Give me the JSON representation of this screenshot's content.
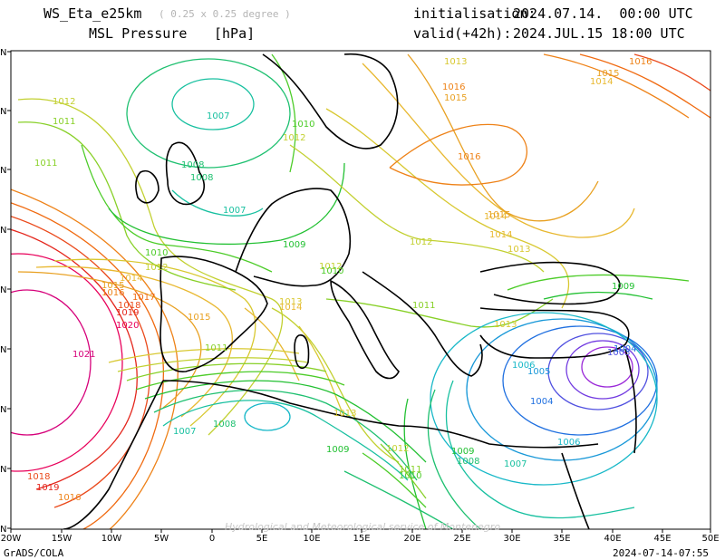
{
  "header": {
    "model": "WS_Eta_e25km",
    "resolution": "( 0.25 x 0.25 degree )",
    "field": "MSL Pressure",
    "unit": "[hPa]",
    "init_label": "initialisation:",
    "init_value": "2024.07.14.  00:00 UTC",
    "valid_label": "valid(+42h):",
    "valid_value": "2024.JUL.15 18:00 UTC"
  },
  "axes": {
    "lon_ticks": [
      "20W",
      "15W",
      "10W",
      "5W",
      "0",
      "5E",
      "10E",
      "15E",
      "20E",
      "25E",
      "30E",
      "35E",
      "40E",
      "45E",
      "50E"
    ],
    "lat_ticks": [
      "N",
      "N",
      "N",
      "N",
      "N",
      "N",
      "N",
      "N",
      "N"
    ]
  },
  "watermark": "Hydrological and Meteorological service of Montenegro",
  "footer": {
    "left": "GrADS/COLA",
    "right": "2024-07-14-07:55"
  },
  "colors": {
    "hp1021": "#d6007a",
    "hp1020": "#e8005a",
    "hp1019": "#e4261c",
    "hp1018": "#ea4a1c",
    "hp1017": "#f06a10",
    "hp1016": "#ee8218",
    "hp1015": "#e8a020",
    "hp1014": "#e8b830",
    "hp1013": "#d8c830",
    "hp1012": "#c2d030",
    "hp1011": "#88d028",
    "hp1010": "#4ccc28",
    "hp1009": "#22c032",
    "hp1008": "#1ec070",
    "hp1007": "#18c0a0",
    "hp1006": "#18b8c8",
    "hp1005": "#1898d8",
    "hp1004": "#2070e0",
    "hp1003": "#5050e0",
    "hp1002": "#7038e0",
    "hp1001": "#9a28d8"
  },
  "isobar_labels": [
    {
      "text": "1012",
      "c": "hp1012"
    },
    {
      "text": "1011",
      "c": "hp1011"
    },
    {
      "text": "1011",
      "c": "hp1011"
    },
    {
      "text": "1007",
      "c": "hp1007"
    },
    {
      "text": "1010",
      "c": "hp1010"
    },
    {
      "text": "1012",
      "c": "hp1012"
    },
    {
      "text": "1008",
      "c": "hp1008"
    },
    {
      "text": "1008",
      "c": "hp1008"
    },
    {
      "text": "1007",
      "c": "hp1007"
    },
    {
      "text": "1009",
      "c": "hp1009"
    },
    {
      "text": "1010",
      "c": "hp1010"
    },
    {
      "text": "1012",
      "c": "hp1012"
    },
    {
      "text": "1014",
      "c": "hp1014"
    },
    {
      "text": "1015",
      "c": "hp1015"
    },
    {
      "text": "1016",
      "c": "hp1016"
    },
    {
      "text": "1017",
      "c": "hp1017"
    },
    {
      "text": "1018",
      "c": "hp1018"
    },
    {
      "text": "1019",
      "c": "hp1019"
    },
    {
      "text": "1020",
      "c": "hp1020"
    },
    {
      "text": "1021",
      "c": "hp1021"
    },
    {
      "text": "1015",
      "c": "hp1015"
    },
    {
      "text": "1013",
      "c": "hp1013"
    },
    {
      "text": "1014",
      "c": "hp1014"
    },
    {
      "text": "1011",
      "c": "hp1011"
    },
    {
      "text": "1012",
      "c": "hp1012"
    },
    {
      "text": "1011",
      "c": "hp1011"
    },
    {
      "text": "1014",
      "c": "hp1014"
    },
    {
      "text": "1013",
      "c": "hp1013"
    },
    {
      "text": "1008",
      "c": "hp1008"
    },
    {
      "text": "1007",
      "c": "hp1007"
    },
    {
      "text": "1009",
      "c": "hp1009"
    },
    {
      "text": "1012",
      "c": "hp1012"
    },
    {
      "text": "1011",
      "c": "hp1011"
    },
    {
      "text": "1010",
      "c": "hp1010"
    },
    {
      "text": "1009",
      "c": "hp1009"
    },
    {
      "text": "1008",
      "c": "hp1008"
    },
    {
      "text": "1007",
      "c": "hp1007"
    },
    {
      "text": "1006",
      "c": "hp1006"
    },
    {
      "text": "1005",
      "c": "hp1005"
    },
    {
      "text": "1004",
      "c": "hp1004"
    },
    {
      "text": "1003",
      "c": "hp1003"
    },
    {
      "text": "1006",
      "c": "hp1006"
    },
    {
      "text": "1004",
      "c": "hp1004"
    },
    {
      "text": "1013",
      "c": "hp1013"
    },
    {
      "text": "1009",
      "c": "hp1009"
    },
    {
      "text": "1012",
      "c": "hp1012"
    },
    {
      "text": "1013",
      "c": "hp1013"
    },
    {
      "text": "1014",
      "c": "hp1014"
    },
    {
      "text": "1015",
      "c": "hp1015"
    },
    {
      "text": "1016",
      "c": "hp1016"
    },
    {
      "text": "1016",
      "c": "hp1016"
    },
    {
      "text": "1015",
      "c": "hp1015"
    },
    {
      "text": "1014",
      "c": "hp1014"
    },
    {
      "text": "1016",
      "c": "hp1016"
    },
    {
      "text": "1015",
      "c": "hp1015"
    },
    {
      "text": "1018",
      "c": "hp1018"
    },
    {
      "text": "1019",
      "c": "hp1019"
    },
    {
      "text": "1016",
      "c": "hp1016"
    },
    {
      "text": "1010",
      "c": "hp1010"
    },
    {
      "text": "1013",
      "c": "hp1013"
    }
  ]
}
